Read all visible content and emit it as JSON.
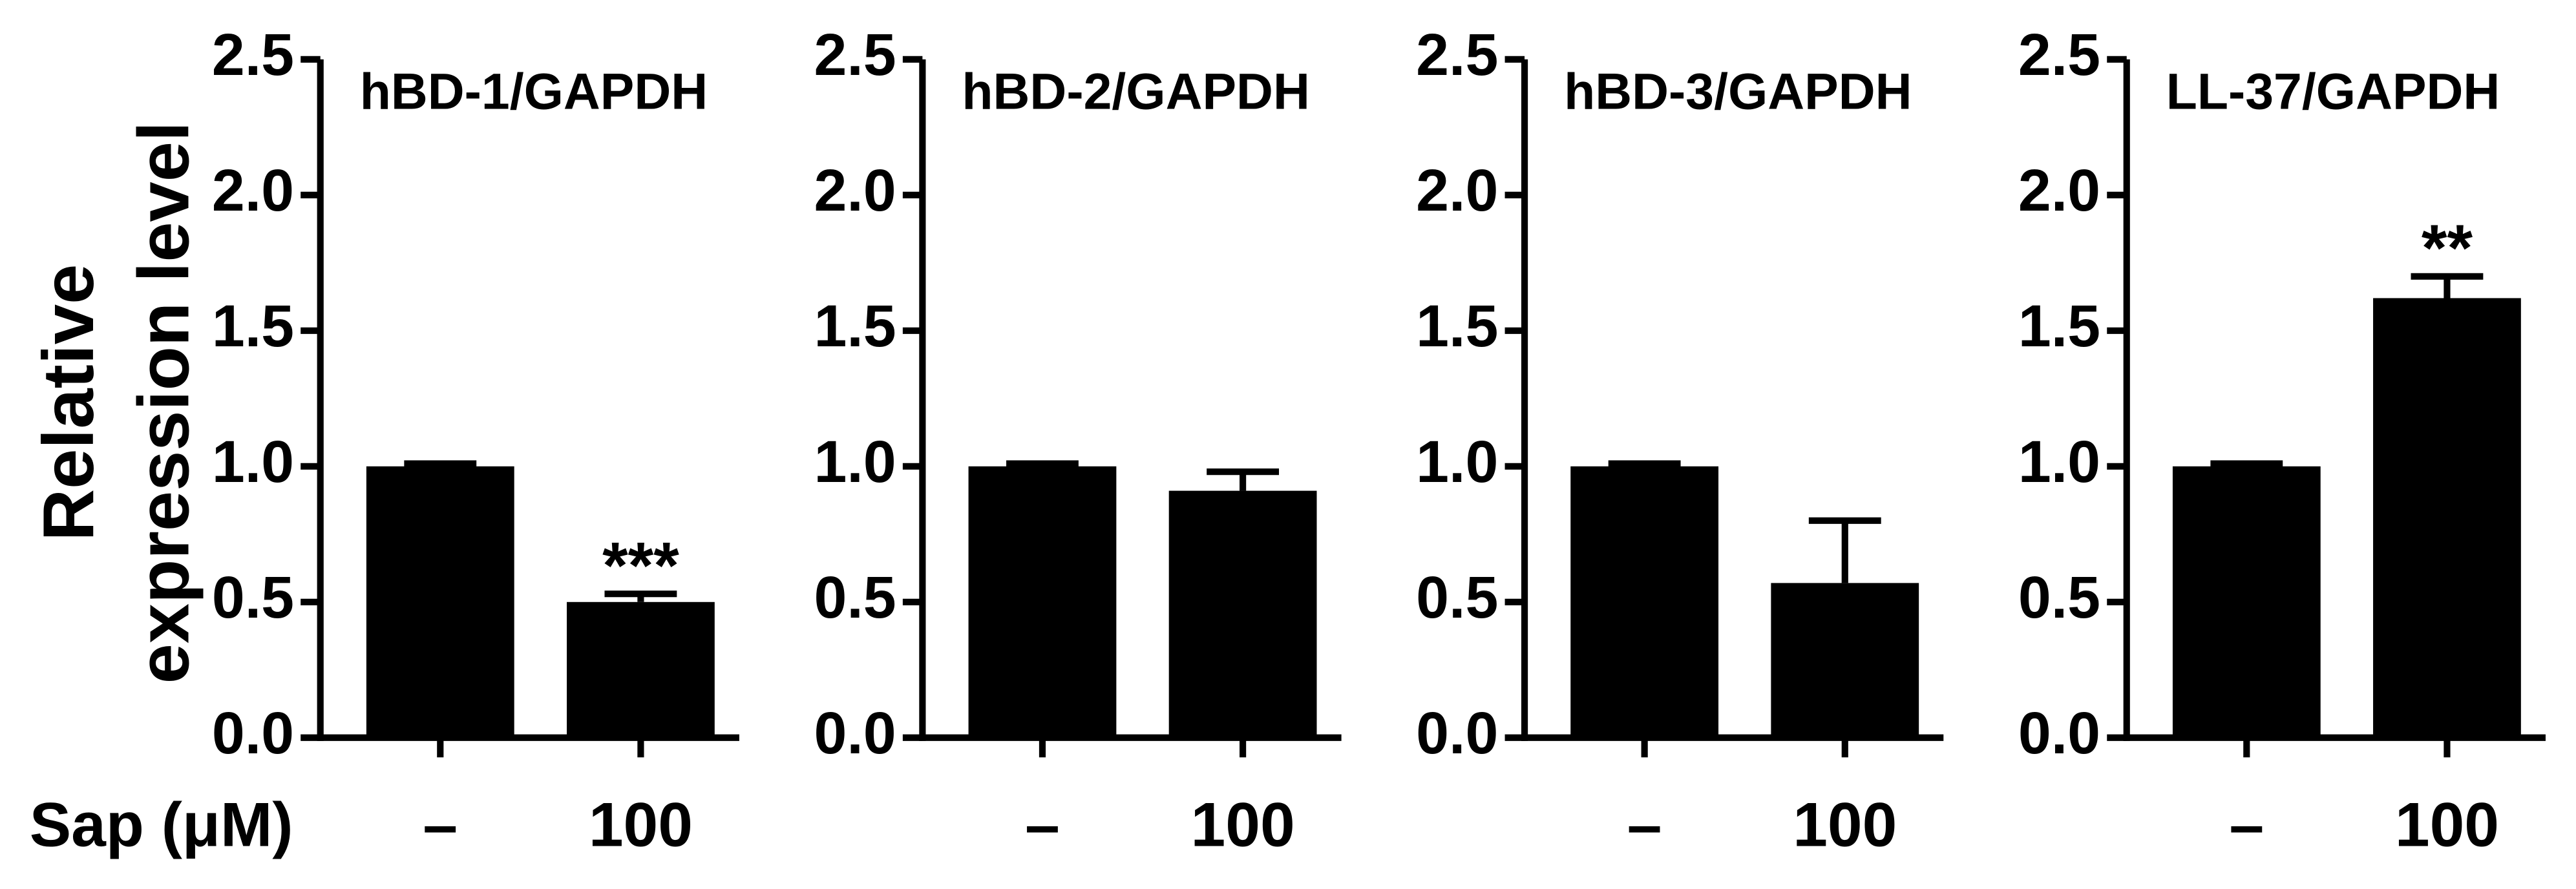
{
  "chart_data": [
    {
      "type": "bar",
      "title": "hBD-1/GAPDH",
      "y_label": [
        "Relative",
        "expression level"
      ],
      "x_label": "Sap (μM)",
      "categories": [
        "–",
        "100"
      ],
      "values": [
        1.0,
        0.5
      ],
      "errors": [
        0.01,
        0.03
      ],
      "significance": [
        null,
        "***"
      ],
      "color": "#000000",
      "ylim": [
        0,
        2.5
      ],
      "yticks": [
        {
          "value": 0,
          "label": "0.0"
        },
        {
          "value": 0.5,
          "label": "0.5"
        },
        {
          "value": 1,
          "label": "1.0"
        },
        {
          "value": 1.5,
          "label": "1.5"
        },
        {
          "value": 2,
          "label": "2.0"
        },
        {
          "value": 2.5,
          "label": "2.5"
        }
      ]
    },
    {
      "type": "bar",
      "title": "hBD-2/GAPDH",
      "categories": [
        "–",
        "100"
      ],
      "values": [
        1.0,
        0.91
      ],
      "errors": [
        0.01,
        0.07
      ],
      "color": "#000000",
      "ylim": [
        0,
        2.5
      ],
      "yticks": [
        {
          "value": 0,
          "label": "0.0"
        },
        {
          "value": 0.5,
          "label": "0.5"
        },
        {
          "value": 1,
          "label": "1.0"
        },
        {
          "value": 1.5,
          "label": "1.5"
        },
        {
          "value": 2,
          "label": "2.0"
        },
        {
          "value": 2.5,
          "label": "2.5"
        }
      ]
    },
    {
      "type": "bar",
      "title": "hBD-3/GAPDH",
      "categories": [
        "–",
        "100"
      ],
      "values": [
        1.0,
        0.57
      ],
      "errors": [
        0.01,
        0.23
      ],
      "color": "#000000",
      "ylim": [
        0,
        2.5
      ],
      "yticks": [
        {
          "value": 0,
          "label": "0.0"
        },
        {
          "value": 0.5,
          "label": "0.5"
        },
        {
          "value": 1,
          "label": "1.0"
        },
        {
          "value": 1.5,
          "label": "1.5"
        },
        {
          "value": 2,
          "label": "2.0"
        },
        {
          "value": 2.5,
          "label": "2.5"
        }
      ]
    },
    {
      "type": "bar",
      "title": "LL-37/GAPDH",
      "categories": [
        "–",
        "100"
      ],
      "values": [
        1.0,
        1.62
      ],
      "errors": [
        0.01,
        0.08
      ],
      "significance": [
        null,
        "**"
      ],
      "color": "#000000",
      "ylim": [
        0,
        2.5
      ],
      "yticks": [
        {
          "value": 0,
          "label": "0.0"
        },
        {
          "value": 0.5,
          "label": "0.5"
        },
        {
          "value": 1,
          "label": "1.0"
        },
        {
          "value": 1.5,
          "label": "1.5"
        },
        {
          "value": 2,
          "label": "2.0"
        },
        {
          "value": 2.5,
          "label": "2.5"
        }
      ]
    }
  ]
}
